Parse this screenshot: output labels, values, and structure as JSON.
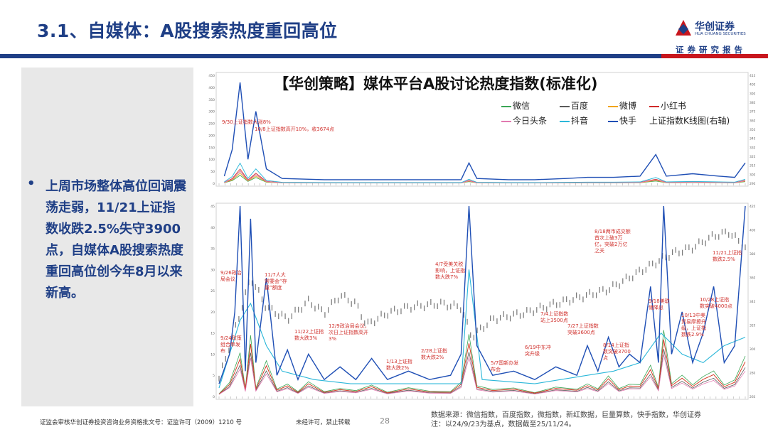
{
  "header": {
    "title": "3.1、自媒体：A股搜索热度重回高位",
    "logo_name": "华创证券",
    "logo_en": "HUA CHUANG SECURITIES",
    "subline": "证券研究报告"
  },
  "summary": {
    "bullet": "•",
    "text": "上周市场整体高位回调震荡走弱，11/21上证指数收跌2.5%失守3900点，自媒体A股搜索热度重回高位创今年8月以来新高。"
  },
  "footer": {
    "license": "证监会审核华创证券投资咨询业务资格批文号：证监许可（2009）1210 号",
    "notice": "未经许可，禁止转载",
    "page": "28",
    "source_line1": "数据来源：微信指数，百度指数，微指数，新红数据，巨量算数，快手指数，华创证券",
    "source_line2": "注：以24/9/23为基点，数据截至25/11/24。"
  },
  "chart_data": {
    "type": "line",
    "title": "【华创策略】媒体平台A股讨论热度指数(标准化)",
    "legend": [
      "微信",
      "百度",
      "微博",
      "小红书",
      "今日头条",
      "抖音",
      "快手",
      "上证指数K线图(右轴)"
    ],
    "colors": {
      "微信": "#3aa655",
      "百度": "#5a5a5a",
      "微博": "#f2a51a",
      "小红书": "#d02a2a",
      "今日头条": "#e27ab0",
      "抖音": "#2bb7d9",
      "快手": "#1f4fb5",
      "上证指数K线图(右轴)": "#555555"
    },
    "top_panel": {
      "y_left_ticks": [
        "0",
        "50",
        "100",
        "150",
        "200",
        "250",
        "300",
        "350",
        "400",
        "450"
      ],
      "y_right_ticks": [
        "2900",
        "3000",
        "3100",
        "3200",
        "3300",
        "3400",
        "3500",
        "3600",
        "3700",
        "3800",
        "3900",
        "4000",
        "4100"
      ],
      "ylim_left": [
        0,
        450
      ],
      "series_peaks": {
        "快手": [
          {
            "x": 0.01,
            "y": 30
          },
          {
            "x": 0.025,
            "y": 140
          },
          {
            "x": 0.04,
            "y": 420
          },
          {
            "x": 0.055,
            "y": 100
          },
          {
            "x": 0.07,
            "y": 300
          },
          {
            "x": 0.09,
            "y": 60
          },
          {
            "x": 0.12,
            "y": 20
          },
          {
            "x": 0.2,
            "y": 15
          },
          {
            "x": 0.3,
            "y": 15
          },
          {
            "x": 0.4,
            "y": 15
          },
          {
            "x": 0.46,
            "y": 15
          },
          {
            "x": 0.475,
            "y": 85
          },
          {
            "x": 0.49,
            "y": 20
          },
          {
            "x": 0.55,
            "y": 15
          },
          {
            "x": 0.6,
            "y": 15
          },
          {
            "x": 0.66,
            "y": 20
          },
          {
            "x": 0.7,
            "y": 25
          },
          {
            "x": 0.75,
            "y": 25
          },
          {
            "x": 0.8,
            "y": 30
          },
          {
            "x": 0.83,
            "y": 120
          },
          {
            "x": 0.85,
            "y": 30
          },
          {
            "x": 0.9,
            "y": 40
          },
          {
            "x": 0.95,
            "y": 30
          },
          {
            "x": 0.98,
            "y": 25
          },
          {
            "x": 1.0,
            "y": 85
          }
        ]
      },
      "annotations": [
        "9/30上证指数大涨8%",
        "10/8上证指数高开10%，收3674点"
      ]
    },
    "bottom_panel": {
      "y_left_ticks": [
        "0",
        "5",
        "10",
        "15",
        "20",
        "25",
        "30",
        "35",
        "40",
        "45"
      ],
      "y_right_ticks": [
        "2600",
        "2800",
        "3000",
        "3200",
        "3400",
        "3600",
        "3800",
        "4000",
        "4200"
      ],
      "ylim_left": [
        0,
        45
      ],
      "ylim_right": [
        2600,
        4200
      ],
      "index_path": [
        {
          "x": 0.0,
          "y": 2750
        },
        {
          "x": 0.04,
          "y": 3300
        },
        {
          "x": 0.06,
          "y": 3600
        },
        {
          "x": 0.09,
          "y": 3350
        },
        {
          "x": 0.13,
          "y": 3250
        },
        {
          "x": 0.17,
          "y": 3400
        },
        {
          "x": 0.2,
          "y": 3300
        },
        {
          "x": 0.23,
          "y": 3450
        },
        {
          "x": 0.26,
          "y": 3380
        },
        {
          "x": 0.28,
          "y": 3200
        },
        {
          "x": 0.32,
          "y": 3300
        },
        {
          "x": 0.36,
          "y": 3350
        },
        {
          "x": 0.42,
          "y": 3380
        },
        {
          "x": 0.46,
          "y": 3350
        },
        {
          "x": 0.48,
          "y": 3100
        },
        {
          "x": 0.52,
          "y": 3250
        },
        {
          "x": 0.58,
          "y": 3300
        },
        {
          "x": 0.64,
          "y": 3380
        },
        {
          "x": 0.7,
          "y": 3450
        },
        {
          "x": 0.74,
          "y": 3500
        },
        {
          "x": 0.78,
          "y": 3600
        },
        {
          "x": 0.82,
          "y": 3700
        },
        {
          "x": 0.86,
          "y": 3800
        },
        {
          "x": 0.9,
          "y": 3850
        },
        {
          "x": 0.94,
          "y": 3950
        },
        {
          "x": 0.97,
          "y": 3980
        },
        {
          "x": 1.0,
          "y": 3850
        }
      ],
      "kuaishou_peaks": [
        {
          "x": 0.0,
          "y": 3
        },
        {
          "x": 0.02,
          "y": 10
        },
        {
          "x": 0.03,
          "y": 20
        },
        {
          "x": 0.04,
          "y": 45
        },
        {
          "x": 0.05,
          "y": 6
        },
        {
          "x": 0.06,
          "y": 42
        },
        {
          "x": 0.07,
          "y": 8
        },
        {
          "x": 0.09,
          "y": 28
        },
        {
          "x": 0.11,
          "y": 5
        },
        {
          "x": 0.13,
          "y": 11
        },
        {
          "x": 0.15,
          "y": 4
        },
        {
          "x": 0.17,
          "y": 10
        },
        {
          "x": 0.2,
          "y": 4
        },
        {
          "x": 0.23,
          "y": 7
        },
        {
          "x": 0.26,
          "y": 4
        },
        {
          "x": 0.29,
          "y": 9
        },
        {
          "x": 0.32,
          "y": 4
        },
        {
          "x": 0.36,
          "y": 6
        },
        {
          "x": 0.4,
          "y": 4
        },
        {
          "x": 0.44,
          "y": 5
        },
        {
          "x": 0.46,
          "y": 10
        },
        {
          "x": 0.475,
          "y": 45
        },
        {
          "x": 0.49,
          "y": 12
        },
        {
          "x": 0.52,
          "y": 5
        },
        {
          "x": 0.56,
          "y": 6
        },
        {
          "x": 0.6,
          "y": 4
        },
        {
          "x": 0.64,
          "y": 7
        },
        {
          "x": 0.68,
          "y": 5
        },
        {
          "x": 0.7,
          "y": 12
        },
        {
          "x": 0.72,
          "y": 6
        },
        {
          "x": 0.74,
          "y": 14
        },
        {
          "x": 0.76,
          "y": 7
        },
        {
          "x": 0.78,
          "y": 10
        },
        {
          "x": 0.8,
          "y": 8
        },
        {
          "x": 0.82,
          "y": 26
        },
        {
          "x": 0.835,
          "y": 8
        },
        {
          "x": 0.845,
          "y": 45
        },
        {
          "x": 0.86,
          "y": 10
        },
        {
          "x": 0.88,
          "y": 20
        },
        {
          "x": 0.9,
          "y": 8
        },
        {
          "x": 0.92,
          "y": 15
        },
        {
          "x": 0.94,
          "y": 26
        },
        {
          "x": 0.96,
          "y": 8
        },
        {
          "x": 0.98,
          "y": 12
        },
        {
          "x": 1.0,
          "y": 45
        }
      ],
      "douyin_peaks": [
        {
          "x": 0.0,
          "y": 2
        },
        {
          "x": 0.04,
          "y": 18
        },
        {
          "x": 0.06,
          "y": 22
        },
        {
          "x": 0.09,
          "y": 12
        },
        {
          "x": 0.12,
          "y": 6
        },
        {
          "x": 0.18,
          "y": 4
        },
        {
          "x": 0.25,
          "y": 3
        },
        {
          "x": 0.35,
          "y": 3
        },
        {
          "x": 0.46,
          "y": 3
        },
        {
          "x": 0.475,
          "y": 30
        },
        {
          "x": 0.5,
          "y": 4
        },
        {
          "x": 0.6,
          "y": 3
        },
        {
          "x": 0.7,
          "y": 5
        },
        {
          "x": 0.75,
          "y": 6
        },
        {
          "x": 0.8,
          "y": 8
        },
        {
          "x": 0.84,
          "y": 15
        },
        {
          "x": 0.88,
          "y": 10
        },
        {
          "x": 0.92,
          "y": 8
        },
        {
          "x": 0.96,
          "y": 12
        },
        {
          "x": 1.0,
          "y": 14
        }
      ],
      "annotations": [
        "9/24政策组合拳发布",
        "9/26政治局会议",
        "11/7人大常委会“存量”额度",
        "11/22上证指数大跌3%",
        "12/9政治局会议，次日上证指数高开3%",
        "1/13上证指数大跌2%",
        "2/28上证指数大跌2%",
        "4/7受美关税影响，上证指数大跌7%",
        "5/7国新办发布会",
        "6/19中东冲突升级",
        "7/4上证指数站上3500点",
        "7/27上证指数突破3600点",
        "8/14上证指数突破3700点",
        "8/18两市成交额首次上破3万亿，突破2万亿之关",
        "9/18美联储降息",
        "10/13中美贸易摩擦升级，上证指数跌2.9%",
        "10/28上证指数突破4000点",
        "11/21上证指数跌2.5%"
      ]
    }
  }
}
